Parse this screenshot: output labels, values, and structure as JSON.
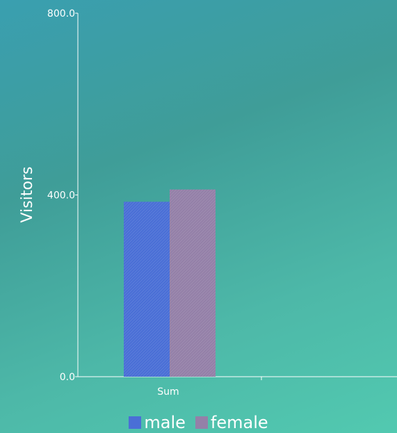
{
  "chart_data": {
    "type": "bar",
    "categories": [
      "Sum"
    ],
    "series": [
      {
        "name": "male",
        "values": [
          385
        ],
        "color": "#4a6fd6"
      },
      {
        "name": "female",
        "values": [
          412
        ],
        "color": "#9480a8"
      }
    ],
    "ylabel": "Visitors",
    "xlabel": "",
    "ylim": [
      0,
      800
    ],
    "yticks": [
      "0.0",
      "400.0",
      "800.0"
    ],
    "grid": false,
    "legend_position": "bottom"
  }
}
